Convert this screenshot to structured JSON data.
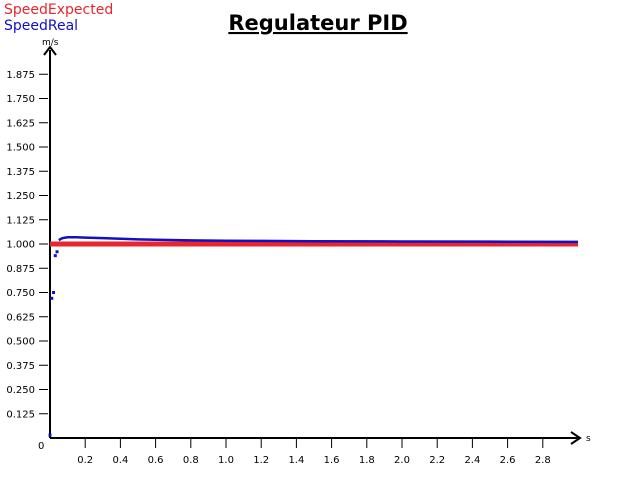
{
  "chart_data": {
    "type": "line",
    "title": "Regulateur PID",
    "xlabel": "s",
    "ylabel": "m/s",
    "xlim": [
      0,
      3.0
    ],
    "ylim": [
      0,
      2.0
    ],
    "x_ticks": [
      0.2,
      0.4,
      0.6,
      0.8,
      1.0,
      1.2,
      1.4,
      1.6,
      1.8,
      2.0,
      2.2,
      2.4,
      2.6,
      2.8
    ],
    "x_tick_labels": [
      "0.2",
      "0.4",
      "0.6",
      "0.8",
      "1.0",
      "1.2",
      "1.4",
      "1.6",
      "1.8",
      "2.0",
      "2.2",
      "2.4",
      "2.6",
      "2.8"
    ],
    "y_ticks": [
      0.125,
      0.25,
      0.375,
      0.5,
      0.625,
      0.75,
      0.875,
      1.0,
      1.125,
      1.25,
      1.375,
      1.5,
      1.625,
      1.75,
      1.875
    ],
    "y_tick_labels": [
      "0.125",
      "0.250",
      "0.375",
      "0.500",
      "0.625",
      "0.750",
      "0.875",
      "1.000",
      "1.125",
      "1.250",
      "1.375",
      "1.500",
      "1.625",
      "1.750",
      "1.875"
    ],
    "origin_label": "0",
    "legend_position": "top-left",
    "grid": false,
    "series": [
      {
        "name": "SpeedExpected",
        "color": "#e8262b",
        "x": [
          0.0,
          3.0
        ],
        "y": [
          1.0,
          1.0
        ]
      },
      {
        "name": "SpeedReal",
        "color": "#1010c8",
        "x": [
          0.0,
          0.01,
          0.02,
          0.03,
          0.04,
          0.05,
          0.07,
          0.1,
          0.15,
          0.2,
          0.3,
          0.4,
          0.5,
          0.6,
          0.8,
          1.0,
          1.2,
          1.5,
          2.0,
          2.5,
          3.0
        ],
        "y": [
          0.015,
          0.72,
          0.75,
          0.94,
          0.96,
          1.02,
          1.03,
          1.035,
          1.035,
          1.033,
          1.03,
          1.027,
          1.024,
          1.022,
          1.019,
          1.017,
          1.016,
          1.014,
          1.013,
          1.012,
          1.011
        ]
      }
    ]
  }
}
